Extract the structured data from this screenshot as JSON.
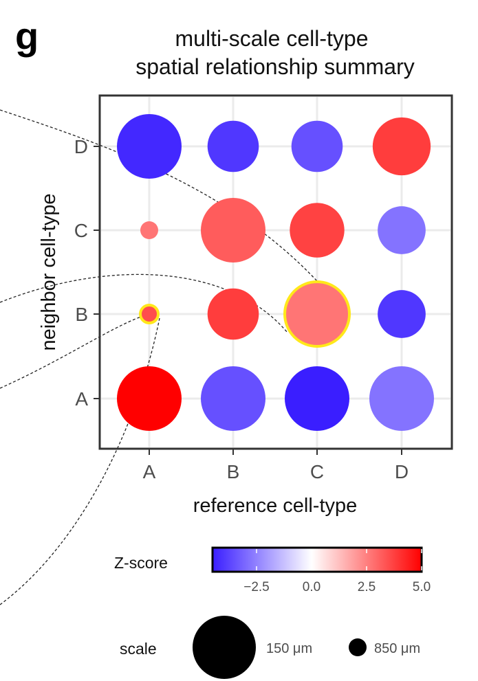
{
  "panel_label": "g",
  "chart_data": {
    "type": "bubble",
    "title_lines": [
      "multi-scale cell-type",
      "spatial relationship summary"
    ],
    "xlabel": "reference cell-type",
    "ylabel": "neighbor cell-type",
    "x_categories": [
      "A",
      "B",
      "C",
      "D"
    ],
    "y_categories": [
      "A",
      "B",
      "C",
      "D"
    ],
    "grid": true,
    "points": [
      {
        "x": "A",
        "y": "A",
        "z": 5.0,
        "scale_um": 150,
        "highlight": false
      },
      {
        "x": "B",
        "y": "A",
        "z": -3.5,
        "scale_um": 150,
        "highlight": false
      },
      {
        "x": "C",
        "y": "A",
        "z": -4.5,
        "scale_um": 150,
        "highlight": false
      },
      {
        "x": "D",
        "y": "A",
        "z": -2.8,
        "scale_um": 150,
        "highlight": false
      },
      {
        "x": "A",
        "y": "B",
        "z": 3.5,
        "scale_um": 850,
        "highlight": true
      },
      {
        "x": "B",
        "y": "B",
        "z": 3.8,
        "scale_um": 350,
        "highlight": false
      },
      {
        "x": "C",
        "y": "B",
        "z": 2.7,
        "scale_um": 150,
        "highlight": true
      },
      {
        "x": "D",
        "y": "B",
        "z": -4.0,
        "scale_um": 400,
        "highlight": false
      },
      {
        "x": "A",
        "y": "C",
        "z": 2.7,
        "scale_um": 850,
        "highlight": false
      },
      {
        "x": "B",
        "y": "C",
        "z": 3.2,
        "scale_um": 150,
        "highlight": false
      },
      {
        "x": "C",
        "y": "C",
        "z": 3.7,
        "scale_um": 300,
        "highlight": false
      },
      {
        "x": "D",
        "y": "C",
        "z": -2.8,
        "scale_um": 400,
        "highlight": false
      },
      {
        "x": "A",
        "y": "D",
        "z": -4.3,
        "scale_um": 150,
        "highlight": false
      },
      {
        "x": "B",
        "y": "D",
        "z": -4.0,
        "scale_um": 350,
        "highlight": false
      },
      {
        "x": "C",
        "y": "D",
        "z": -3.5,
        "scale_um": 350,
        "highlight": false
      },
      {
        "x": "D",
        "y": "D",
        "z": 3.8,
        "scale_um": 250,
        "highlight": false
      }
    ],
    "colorbar": {
      "title": "Z-score",
      "min": -4.5,
      "max": 5.0,
      "ticks": [
        -2.5,
        0.0,
        2.5,
        5.0
      ],
      "tick_labels": [
        "−2.5",
        "0.0",
        "2.5",
        "5.0"
      ],
      "low_color": "#3a1eff",
      "mid_color": "#ffffff",
      "high_color": "#ff0000"
    },
    "size_legend": {
      "title": "scale",
      "entries": [
        {
          "value_um": 150,
          "label": "150 μm"
        },
        {
          "value_um": 850,
          "label": "850 μm"
        }
      ]
    },
    "highlight_color": "#ffe81a",
    "connectors": "dashed"
  }
}
